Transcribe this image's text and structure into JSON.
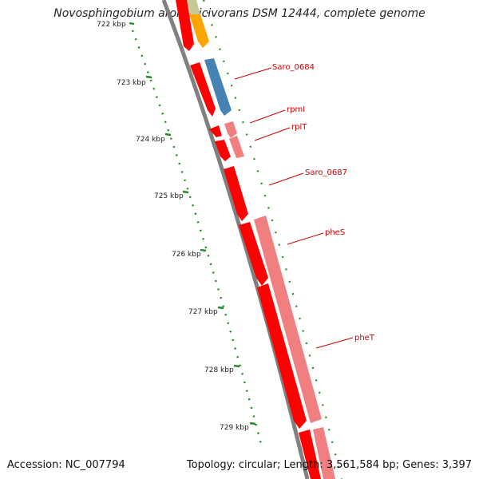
{
  "title": "Novosphingobium aromaticivorans DSM 12444, complete genome",
  "footer": {
    "accession": "Accession: NC_007794",
    "topology": "Topology: circular; Length: 3,561,584 bp; Genes: 3,397"
  },
  "scale_labels": [
    "722 kbp",
    "723 kbp",
    "724 kbp",
    "725 kbp",
    "726 kbp",
    "727 kbp",
    "728 kbp",
    "729 kbp"
  ],
  "gene_labels": [
    "Saro_0684",
    "rpmI",
    "rplT",
    "Saro_0687",
    "pheS",
    "pheT"
  ],
  "colors": {
    "cds": "#ff0000",
    "rna_pale": "#f08080",
    "blue_feature": "#4682b4",
    "orange_feature": "#ffa500",
    "olive_feature": "#c8c896",
    "backbone": "#808080",
    "tick": "#228b22",
    "label": "#cc0000"
  }
}
